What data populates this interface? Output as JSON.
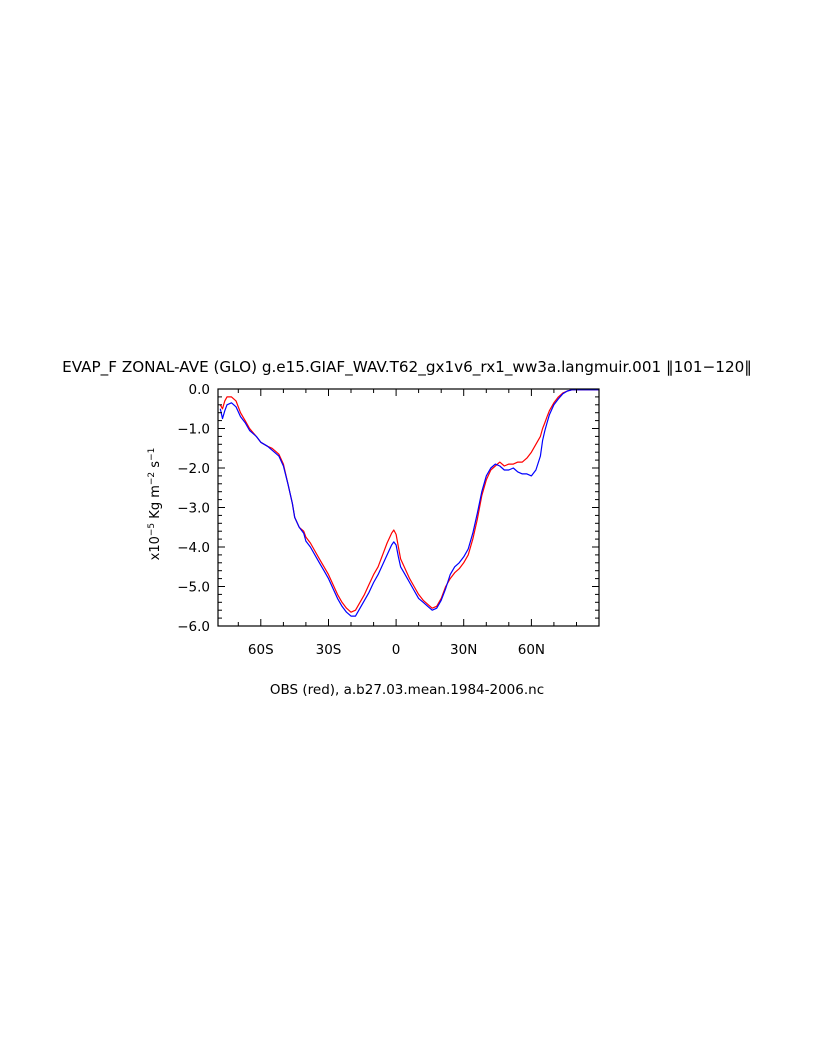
{
  "chart_data": {
    "type": "line",
    "title": "EVAP_F ZONAL-AVE (GLO) g.e15.GIAF_WAV.T62_gx1v6_rx1_ww3a.langmuir.001 ‖101−120‖",
    "ylabel": {
      "base": "x10",
      "e1": "−5",
      "mid1": " Kg m",
      "e2": "−2",
      "mid2": " s",
      "e3": "−1"
    },
    "xlabel": "",
    "caption": "OBS (red), a.b27.03.mean.1984-2006.nc",
    "xlim": [
      -79,
      90
    ],
    "ylim": [
      -6.0,
      0.0
    ],
    "grid": false,
    "x_ticks": [
      {
        "value": -60,
        "label": "60S"
      },
      {
        "value": -30,
        "label": "30S"
      },
      {
        "value": 0,
        "label": "0"
      },
      {
        "value": 30,
        "label": "30N"
      },
      {
        "value": 60,
        "label": "60N"
      }
    ],
    "y_ticks": [
      {
        "value": 0.0,
        "label": "0.0"
      },
      {
        "value": -1.0,
        "label": "−1.0"
      },
      {
        "value": -2.0,
        "label": "−2.0"
      },
      {
        "value": -3.0,
        "label": "−3.0"
      },
      {
        "value": -4.0,
        "label": "−4.0"
      },
      {
        "value": -5.0,
        "label": "−5.0"
      },
      {
        "value": -6.0,
        "label": "−6.0"
      }
    ],
    "series": [
      {
        "color": "#ff0000",
        "x": [
          -78,
          -77,
          -76,
          -75,
          -73,
          -71,
          -69,
          -67,
          -65,
          -62,
          -60,
          -57,
          -55,
          -52,
          -50,
          -48,
          -46,
          -45,
          -43,
          -41,
          -40,
          -38,
          -36,
          -34,
          -32,
          -30,
          -28,
          -26,
          -24,
          -22,
          -20,
          -18,
          -16,
          -14,
          -12,
          -10,
          -8,
          -6,
          -4,
          -2,
          -1,
          0,
          1,
          2,
          4,
          6,
          8,
          10,
          12,
          14,
          16,
          18,
          20,
          22,
          24,
          26,
          28,
          30,
          32,
          34,
          36,
          38,
          40,
          42,
          44,
          46,
          48,
          50,
          52,
          54,
          56,
          58,
          60,
          62,
          64,
          65,
          66,
          67,
          68,
          70,
          72,
          74,
          76,
          78,
          80,
          82,
          84,
          86,
          88,
          90
        ],
        "y": [
          -0.4,
          -0.5,
          -0.3,
          -0.2,
          -0.2,
          -0.3,
          -0.6,
          -0.8,
          -1.0,
          -1.2,
          -1.35,
          -1.45,
          -1.5,
          -1.65,
          -1.9,
          -2.4,
          -2.9,
          -3.25,
          -3.5,
          -3.6,
          -3.75,
          -3.9,
          -4.1,
          -4.3,
          -4.5,
          -4.7,
          -4.95,
          -5.2,
          -5.4,
          -5.55,
          -5.65,
          -5.6,
          -5.4,
          -5.2,
          -4.95,
          -4.7,
          -4.5,
          -4.2,
          -3.9,
          -3.65,
          -3.57,
          -3.68,
          -4.0,
          -4.3,
          -4.55,
          -4.8,
          -5.0,
          -5.2,
          -5.35,
          -5.45,
          -5.55,
          -5.5,
          -5.3,
          -5.0,
          -4.8,
          -4.65,
          -4.55,
          -4.4,
          -4.2,
          -3.8,
          -3.3,
          -2.7,
          -2.3,
          -2.05,
          -1.95,
          -1.85,
          -1.95,
          -1.9,
          -1.9,
          -1.85,
          -1.85,
          -1.75,
          -1.6,
          -1.4,
          -1.2,
          -1.0,
          -0.85,
          -0.7,
          -0.55,
          -0.35,
          -0.2,
          -0.1,
          -0.05,
          -0.02,
          -0.02,
          -0.02,
          -0.02,
          -0.02,
          -0.02,
          -0.02
        ]
      },
      {
        "color": "#0000ff",
        "x": [
          -78,
          -77,
          -76,
          -75,
          -73,
          -71,
          -69,
          -67,
          -65,
          -62,
          -60,
          -57,
          -55,
          -52,
          -50,
          -48,
          -46,
          -45,
          -43,
          -41,
          -40,
          -38,
          -36,
          -34,
          -32,
          -30,
          -28,
          -26,
          -24,
          -22,
          -20,
          -18,
          -16,
          -14,
          -12,
          -10,
          -8,
          -6,
          -4,
          -2,
          -1,
          0,
          1,
          2,
          4,
          6,
          8,
          10,
          12,
          14,
          16,
          18,
          20,
          22,
          24,
          26,
          28,
          30,
          32,
          34,
          36,
          38,
          40,
          42,
          44,
          46,
          48,
          50,
          52,
          54,
          56,
          58,
          60,
          62,
          64,
          65,
          66,
          67,
          68,
          70,
          72,
          74,
          76,
          78,
          80,
          82,
          84,
          86,
          88,
          90
        ],
        "y": [
          -0.5,
          -0.75,
          -0.55,
          -0.4,
          -0.35,
          -0.45,
          -0.7,
          -0.85,
          -1.05,
          -1.2,
          -1.35,
          -1.45,
          -1.55,
          -1.7,
          -1.95,
          -2.4,
          -2.9,
          -3.25,
          -3.5,
          -3.65,
          -3.85,
          -4.0,
          -4.2,
          -4.4,
          -4.6,
          -4.8,
          -5.05,
          -5.3,
          -5.5,
          -5.65,
          -5.75,
          -5.75,
          -5.55,
          -5.35,
          -5.15,
          -4.9,
          -4.7,
          -4.45,
          -4.2,
          -3.95,
          -3.87,
          -3.95,
          -4.25,
          -4.5,
          -4.7,
          -4.9,
          -5.1,
          -5.3,
          -5.4,
          -5.5,
          -5.6,
          -5.55,
          -5.35,
          -5.05,
          -4.7,
          -4.5,
          -4.4,
          -4.25,
          -4.05,
          -3.65,
          -3.15,
          -2.6,
          -2.2,
          -2.0,
          -1.9,
          -1.95,
          -2.05,
          -2.05,
          -2.0,
          -2.1,
          -2.15,
          -2.15,
          -2.2,
          -2.05,
          -1.7,
          -1.3,
          -1.05,
          -0.85,
          -0.65,
          -0.4,
          -0.25,
          -0.12,
          -0.05,
          -0.02,
          -0.02,
          -0.02,
          -0.02,
          -0.02,
          -0.02,
          -0.02
        ]
      }
    ]
  }
}
